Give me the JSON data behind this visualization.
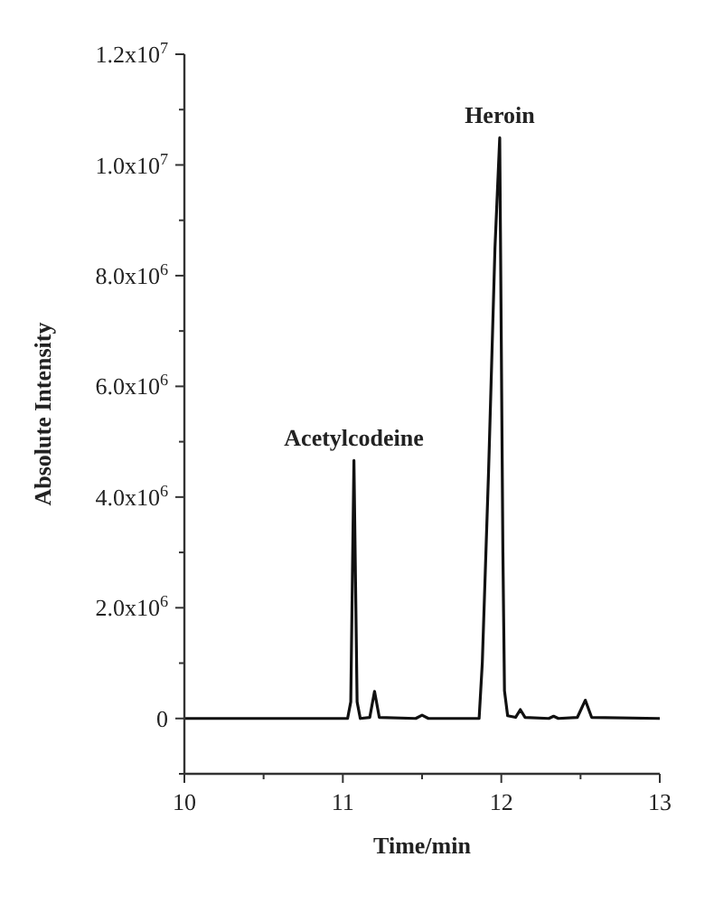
{
  "chart_data": {
    "type": "line",
    "xlabel": "Time/min",
    "ylabel": "Absolute Intensity",
    "xlim": [
      10,
      13
    ],
    "xticks": [
      10,
      {
        "value": 10.5,
        "label": null
      },
      11,
      {
        "value": 11.5,
        "label": null
      },
      12,
      {
        "value": 12.5,
        "label": null
      },
      13
    ],
    "ylim": [
      -1000000,
      12000000
    ],
    "yticks": [
      {
        "value": -1000000,
        "label": null
      },
      0,
      {
        "value": 1000000,
        "label": null
      },
      {
        "value": 2000000,
        "label": "2.0x10$^{6}$"
      },
      {
        "value": 3000000,
        "label": null
      },
      {
        "value": 4000000,
        "label": "4.0x10$^{6}$"
      },
      {
        "value": 5000000,
        "label": null
      },
      {
        "value": 6000000,
        "label": "6.0x10$^{6}$"
      },
      {
        "value": 7000000,
        "label": null
      },
      {
        "value": 8000000,
        "label": "8.0x10$^{6}$"
      },
      {
        "value": 9000000,
        "label": null
      },
      {
        "value": 10000000,
        "label": "1.0x10$^{7}$"
      },
      {
        "value": 11000000,
        "label": null
      },
      {
        "value": 12000000,
        "label": "1.2x10$^{7}$"
      }
    ],
    "series": [
      {
        "color": "#111111",
        "x": [
          10,
          11.03,
          11.05,
          11.07,
          11.09,
          11.11,
          11.17,
          11.2,
          11.23,
          11.46,
          11.5,
          11.54,
          11.86,
          11.88,
          11.92,
          11.96,
          11.99,
          12.01,
          12.02,
          12.04,
          12.09,
          12.12,
          12.15,
          12.3,
          12.33,
          12.36,
          12.48,
          12.53,
          12.57,
          13
        ],
        "values": [
          0,
          0,
          300000,
          4660000,
          300000,
          0,
          20000,
          490000,
          20000,
          0,
          60000,
          0,
          0,
          1000000,
          4500000,
          8500000,
          10490000,
          3000000,
          500000,
          50000,
          20000,
          160000,
          20000,
          0,
          40000,
          0,
          20000,
          330000,
          20000,
          0
        ]
      }
    ],
    "annotations": [
      {
        "text": "Acetylcodeine",
        "x": 11.07,
        "y": 4660000
      },
      {
        "text": "Heroin",
        "x": 11.99,
        "y": 10490000
      }
    ],
    "marker": "none",
    "line_style": "solid",
    "grid": false
  }
}
